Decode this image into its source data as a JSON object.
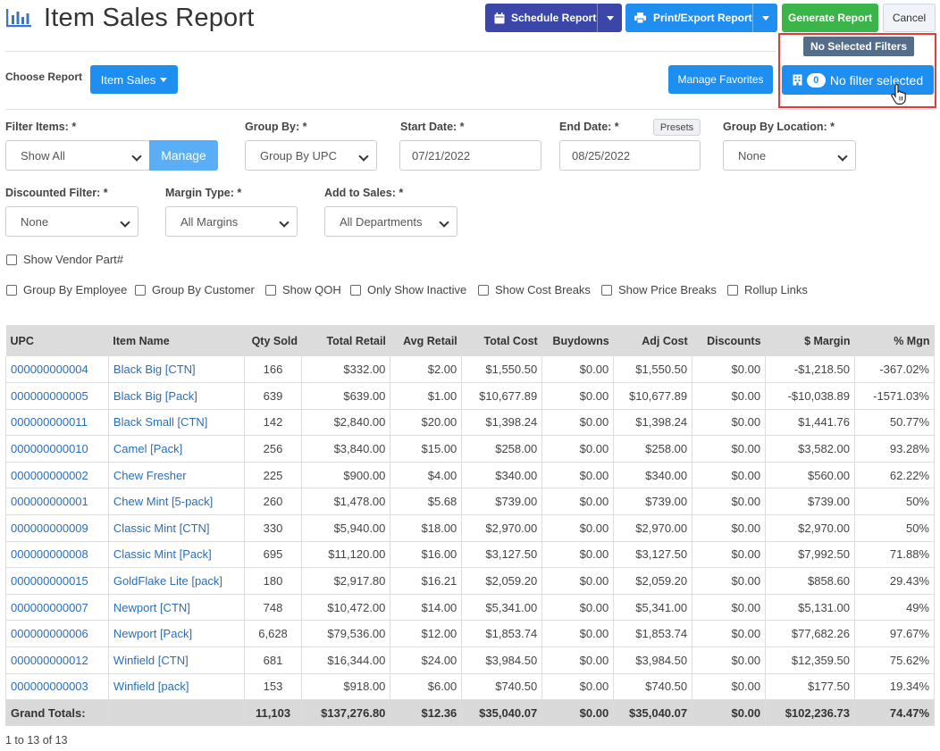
{
  "header": {
    "title": "Item Sales Report",
    "schedule_label": "Schedule Report",
    "print_label": "Print/Export Report",
    "generate_label": "Generate Report",
    "cancel_label": "Cancel",
    "tooltip": "No Selected Filters"
  },
  "choose_report": {
    "label": "Choose Report",
    "value": "Item Sales",
    "favorites_label": "Manage Favorites",
    "filter_count": "0",
    "filter_label": "No filter selected"
  },
  "filters": {
    "filter_items": {
      "label": "Filter Items: *",
      "value": "Show All",
      "manage": "Manage"
    },
    "group_by": {
      "label": "Group By: *",
      "value": "Group By UPC"
    },
    "start_date": {
      "label": "Start Date: *",
      "value": "07/21/2022"
    },
    "end_date": {
      "label": "End Date: *",
      "value": "08/25/2022",
      "presets": "Presets"
    },
    "group_by_location": {
      "label": "Group By Location: *",
      "value": "None"
    },
    "discounted": {
      "label": "Discounted Filter: *",
      "value": "None"
    },
    "margin_type": {
      "label": "Margin Type: *",
      "value": "All Margins"
    },
    "add_to_sales": {
      "label": "Add to Sales: *",
      "value": "All Departments"
    }
  },
  "checkboxes": {
    "vendor_part": "Show Vendor Part#",
    "group_employee": "Group By Employee",
    "group_customer": "Group By Customer",
    "show_qoh": "Show QOH",
    "only_inactive": "Only Show Inactive",
    "cost_breaks": "Show Cost Breaks",
    "price_breaks": "Show Price Breaks",
    "rollup_links": "Rollup Links"
  },
  "table": {
    "columns": [
      "UPC",
      "Item Name",
      "Qty Sold",
      "Total Retail",
      "Avg Retail",
      "Total Cost",
      "Buydowns",
      "Adj Cost",
      "Discounts",
      "$ Margin",
      "% Mgn"
    ],
    "rows": [
      [
        "000000000004",
        "Black Big [CTN]",
        "166",
        "$332.00",
        "$2.00",
        "$1,550.50",
        "$0.00",
        "$1,550.50",
        "$0.00",
        "-$1,218.50",
        "-367.02%"
      ],
      [
        "000000000005",
        "Black Big [Pack]",
        "639",
        "$639.00",
        "$1.00",
        "$10,677.89",
        "$0.00",
        "$10,677.89",
        "$0.00",
        "-$10,038.89",
        "-1571.03%"
      ],
      [
        "000000000011",
        "Black Small [CTN]",
        "142",
        "$2,840.00",
        "$20.00",
        "$1,398.24",
        "$0.00",
        "$1,398.24",
        "$0.00",
        "$1,441.76",
        "50.77%"
      ],
      [
        "000000000010",
        "Camel [Pack]",
        "256",
        "$3,840.00",
        "$15.00",
        "$258.00",
        "$0.00",
        "$258.00",
        "$0.00",
        "$3,582.00",
        "93.28%"
      ],
      [
        "000000000002",
        "Chew Fresher",
        "225",
        "$900.00",
        "$4.00",
        "$340.00",
        "$0.00",
        "$340.00",
        "$0.00",
        "$560.00",
        "62.22%"
      ],
      [
        "000000000001",
        "Chew Mint [5-pack]",
        "260",
        "$1,478.00",
        "$5.68",
        "$739.00",
        "$0.00",
        "$739.00",
        "$0.00",
        "$739.00",
        "50%"
      ],
      [
        "000000000009",
        "Classic Mint [CTN]",
        "330",
        "$5,940.00",
        "$18.00",
        "$2,970.00",
        "$0.00",
        "$2,970.00",
        "$0.00",
        "$2,970.00",
        "50%"
      ],
      [
        "000000000008",
        "Classic Mint [Pack]",
        "695",
        "$11,120.00",
        "$16.00",
        "$3,127.50",
        "$0.00",
        "$3,127.50",
        "$0.00",
        "$7,992.50",
        "71.88%"
      ],
      [
        "000000000015",
        "GoldFlake Lite [pack]",
        "180",
        "$2,917.80",
        "$16.21",
        "$2,059.20",
        "$0.00",
        "$2,059.20",
        "$0.00",
        "$858.60",
        "29.43%"
      ],
      [
        "000000000007",
        "Newport [CTN]",
        "748",
        "$10,472.00",
        "$14.00",
        "$5,341.00",
        "$0.00",
        "$5,341.00",
        "$0.00",
        "$5,131.00",
        "49%"
      ],
      [
        "000000000006",
        "Newport [Pack]",
        "6,628",
        "$79,536.00",
        "$12.00",
        "$1,853.74",
        "$0.00",
        "$1,853.74",
        "$0.00",
        "$77,682.26",
        "97.67%"
      ],
      [
        "000000000012",
        "Winfield [CTN]",
        "681",
        "$16,344.00",
        "$24.00",
        "$3,984.50",
        "$0.00",
        "$3,984.50",
        "$0.00",
        "$12,359.50",
        "75.62%"
      ],
      [
        "000000000003",
        "Winfield [pack]",
        "153",
        "$918.00",
        "$6.00",
        "$740.50",
        "$0.00",
        "$740.50",
        "$0.00",
        "$177.50",
        "19.34%"
      ]
    ],
    "totals": [
      "Grand Totals:",
      "",
      "11,103",
      "$137,276.80",
      "$12.36",
      "$35,040.07",
      "$0.00",
      "$35,040.07",
      "$0.00",
      "$102,236.73",
      "74.47%"
    ]
  },
  "pager": "1 to 13 of 13",
  "colors": {
    "accent": "#1f8ef1",
    "schedule": "#3b47a8",
    "generate": "#3bb54a",
    "highlight": "#e53935",
    "link": "#2a6ebb"
  }
}
